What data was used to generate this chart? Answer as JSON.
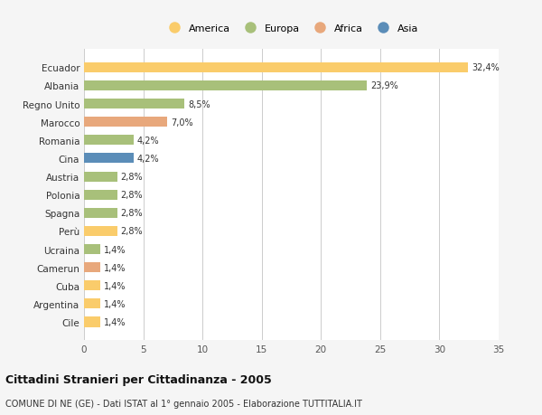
{
  "categories": [
    "Ecuador",
    "Albania",
    "Regno Unito",
    "Marocco",
    "Romania",
    "Cina",
    "Austria",
    "Polonia",
    "Spagna",
    "Perù",
    "Ucraina",
    "Camerun",
    "Cuba",
    "Argentina",
    "Cile"
  ],
  "values": [
    32.4,
    23.9,
    8.5,
    7.0,
    4.2,
    4.2,
    2.8,
    2.8,
    2.8,
    2.8,
    1.4,
    1.4,
    1.4,
    1.4,
    1.4
  ],
  "labels": [
    "32,4%",
    "23,9%",
    "8,5%",
    "7,0%",
    "4,2%",
    "4,2%",
    "2,8%",
    "2,8%",
    "2,8%",
    "2,8%",
    "1,4%",
    "1,4%",
    "1,4%",
    "1,4%",
    "1,4%"
  ],
  "colors": [
    "#FACC6B",
    "#A8C07A",
    "#A8C07A",
    "#E8A87C",
    "#A8C07A",
    "#5B8DB8",
    "#A8C07A",
    "#A8C07A",
    "#A8C07A",
    "#FACC6B",
    "#A8C07A",
    "#E8A87C",
    "#FACC6B",
    "#FACC6B",
    "#FACC6B"
  ],
  "legend_labels": [
    "America",
    "Europa",
    "Africa",
    "Asia"
  ],
  "legend_colors": [
    "#FACC6B",
    "#A8C07A",
    "#E8A87C",
    "#5B8DB8"
  ],
  "xlim": [
    0,
    35
  ],
  "xticks": [
    0,
    5,
    10,
    15,
    20,
    25,
    30,
    35
  ],
  "title": "Cittadini Stranieri per Cittadinanza - 2005",
  "subtitle": "COMUNE DI NE (GE) - Dati ISTAT al 1° gennaio 2005 - Elaborazione TUTTITALIA.IT",
  "background_color": "#f5f5f5",
  "bar_background": "#ffffff",
  "bar_height": 0.55
}
